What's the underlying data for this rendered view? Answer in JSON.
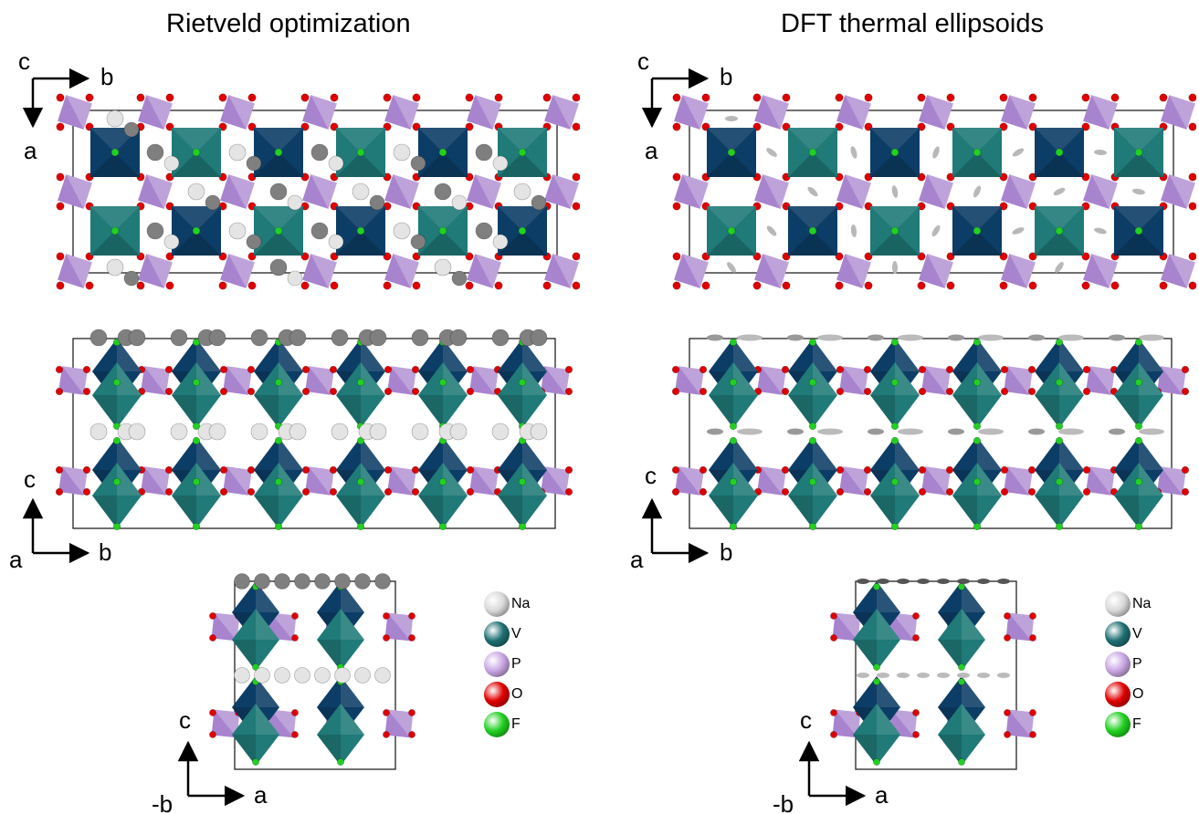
{
  "titles": {
    "left": "Rietveld optimization",
    "right": "DFT thermal ellipsoids"
  },
  "axes": {
    "top_vertical": "a",
    "top_horizontal": "b",
    "top_out": "c",
    "mid_vertical": "c",
    "mid_horizontal": "b",
    "mid_origin": "a",
    "bottom_vertical": "c",
    "bottom_horizontal": "a",
    "bottom_origin": "-b"
  },
  "legend": [
    {
      "symbol": "Na",
      "color": "#d9d9d9"
    },
    {
      "symbol": "V",
      "color": "#1f6f72"
    },
    {
      "symbol": "P",
      "color": "#c9a6e4"
    },
    {
      "symbol": "O",
      "color": "#e00000"
    },
    {
      "symbol": "F",
      "color": "#20d020"
    }
  ],
  "colors": {
    "v_dark": "#0c3d66",
    "v_teal": "#1f7a78",
    "p_polyhedron": "#a884cf",
    "oxygen": "#e00000",
    "fluorine": "#22d022",
    "na_light": "#e4e4e4",
    "na_dark": "#7f7f7f"
  }
}
